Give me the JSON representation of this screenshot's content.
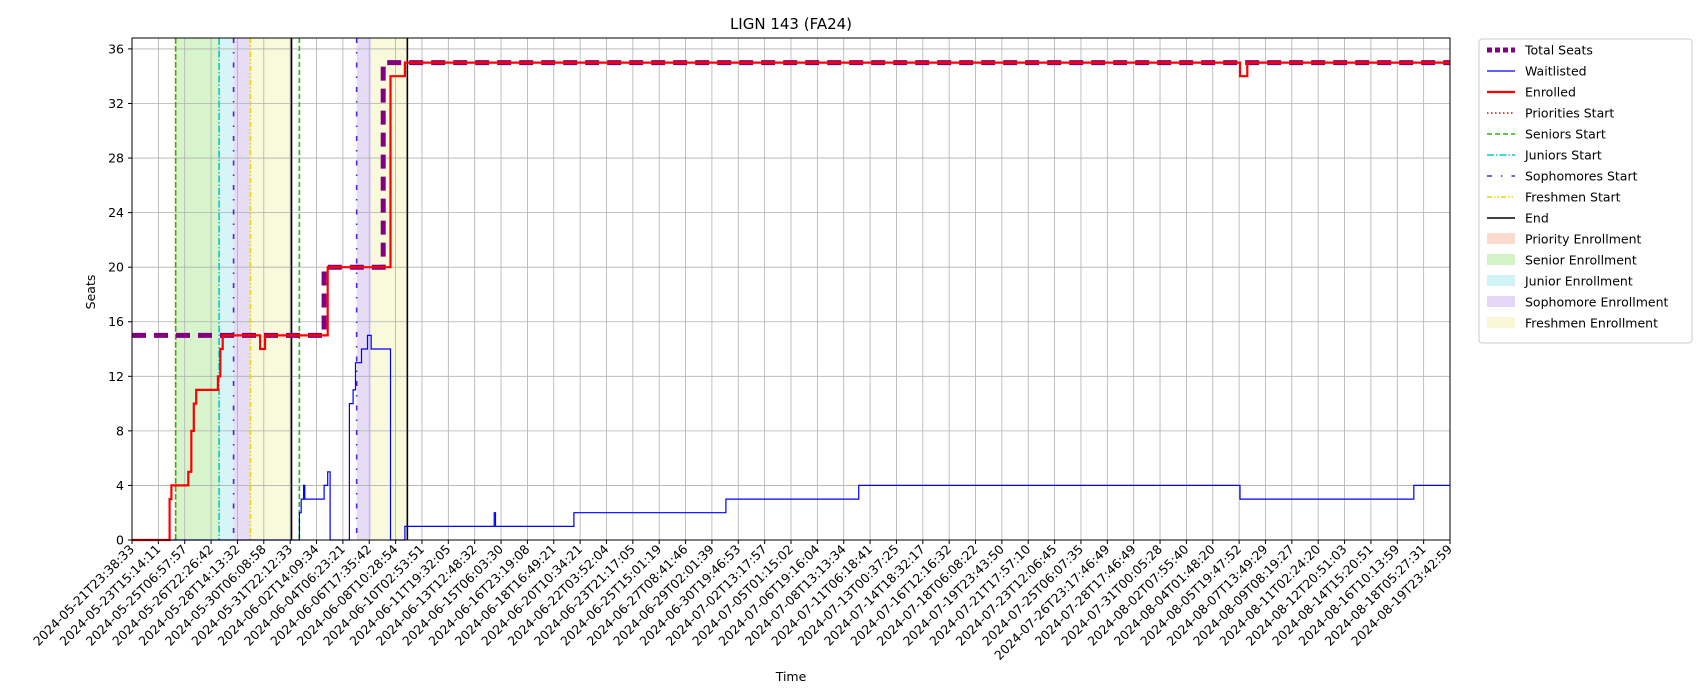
{
  "chart_data": {
    "type": "line",
    "title": "LIGN 143 (FA24)",
    "xlabel": "Time",
    "ylabel": "Seats",
    "ylim": [
      0,
      36.8
    ],
    "xlim": [
      "2024-05-21T23:38:33",
      "2024-08-21T00:00:00"
    ],
    "yticks": [
      0,
      4,
      8,
      12,
      16,
      20,
      24,
      28,
      32,
      36
    ],
    "grid": true,
    "legend_position": "outside-right",
    "xtick_labels": [
      "2024-05-21T23:38:33",
      "2024-05-23T15:14:11",
      "2024-05-25T06:57:57",
      "2024-05-26T22:26:42",
      "2024-05-28T14:13:32",
      "2024-05-30T06:08:58",
      "2024-05-31T22:12:33",
      "2024-06-02T14:09:34",
      "2024-06-04T06:23:21",
      "2024-06-06T17:35:42",
      "2024-06-08T10:28:54",
      "2024-06-10T02:53:51",
      "2024-06-11T19:32:05",
      "2024-06-13T12:48:32",
      "2024-06-15T06:03:30",
      "2024-06-16T23:19:08",
      "2024-06-18T16:49:21",
      "2024-06-20T10:34:21",
      "2024-06-22T03:52:04",
      "2024-06-23T21:17:05",
      "2024-06-25T15:01:19",
      "2024-06-27T08:41:46",
      "2024-06-29T02:01:39",
      "2024-06-30T19:46:53",
      "2024-07-02T13:17:57",
      "2024-07-05T01:15:02",
      "2024-07-06T19:16:04",
      "2024-07-08T13:13:34",
      "2024-07-11T06:18:41",
      "2024-07-13T00:37:25",
      "2024-07-14T18:32:17",
      "2024-07-16T12:16:32",
      "2024-07-18T06:08:22",
      "2024-07-19T23:43:50",
      "2024-07-21T17:57:10",
      "2024-07-23T12:06:45",
      "2024-07-25T06:07:35",
      "2024-07-26T23:17:46:49",
      "2024-07-28T17:46:49",
      "2024-07-31T00:05:28",
      "2024-08-02T07:55:40",
      "2024-08-04T01:48:20",
      "2024-08-05T19:47:52",
      "2024-08-07T13:49:29",
      "2024-08-09T08:19:27",
      "2024-08-11T02:24:20",
      "2024-08-12T20:51:03",
      "2024-08-14T15:20:51",
      "2024-08-16T10:13:59",
      "2024-08-18T05:27:31",
      "2024-08-19T23:42:59"
    ],
    "vertical_markers": [
      {
        "name": "Priorities Start",
        "x": "2024-05-25T00:00:00",
        "color": "#ff0000",
        "dash": "dotted"
      },
      {
        "name": "Seniors Start",
        "x": "2024-05-25T00:00:00",
        "color": "#22bb00",
        "dash": "dashed"
      },
      {
        "name": "Juniors Start",
        "x": "2024-05-28T00:00:00",
        "color": "#00cccc",
        "dash": "dashdot"
      },
      {
        "name": "Sophomores Start",
        "x": "2024-05-29T00:00:00",
        "color": "#5522cc",
        "dash": "loosedash"
      },
      {
        "name": "Freshmen Start",
        "x": "2024-05-30T04:00:00",
        "color": "#e6d800",
        "dash": "dashdotdot"
      },
      {
        "name": "End",
        "x": "2024-06-02T00:00:00",
        "color": "#000000",
        "dash": "solid"
      },
      {
        "name": "Seniors Start",
        "x": "2024-06-02T13:00:00",
        "color": "#22bb00",
        "dash": "dashed"
      },
      {
        "name": "Sophomores Start",
        "x": "2024-06-06T12:00:00",
        "color": "#5522cc",
        "dash": "loosedash"
      },
      {
        "name": "End",
        "x": "2024-06-10T00:00:00",
        "color": "#000000",
        "dash": "solid"
      }
    ],
    "shaded_periods": [
      {
        "name": "Priority Enrollment",
        "x0": "2024-05-25T00:00:00",
        "x1": "2024-05-25T00:00:00",
        "color": "#f4a582"
      },
      {
        "name": "Senior Enrollment",
        "x0": "2024-05-25T00:00:00",
        "x1": "2024-05-28T00:00:00",
        "color": "#90e070"
      },
      {
        "name": "Junior Enrollment",
        "x0": "2024-05-28T00:00:00",
        "x1": "2024-05-29T00:00:00",
        "color": "#8ce0e8"
      },
      {
        "name": "Sophomore Enrollment",
        "x0": "2024-05-29T00:00:00",
        "x1": "2024-05-30T04:00:00",
        "color": "#b89ae6"
      },
      {
        "name": "Freshmen Enrollment",
        "x0": "2024-05-30T04:00:00",
        "x1": "2024-06-02T00:00:00",
        "color": "#eeee99"
      },
      {
        "name": "Senior Enrollment",
        "x0": "2024-06-02T13:00:00",
        "x1": "2024-06-02T13:30:00",
        "color": "#90e070"
      },
      {
        "name": "Sophomore Enrollment",
        "x0": "2024-06-06T12:00:00",
        "x1": "2024-06-07T12:00:00",
        "color": "#b89ae6"
      },
      {
        "name": "Freshmen Enrollment",
        "x0": "2024-06-07T12:00:00",
        "x1": "2024-06-10T00:00:00",
        "color": "#eeee99"
      }
    ],
    "series": [
      {
        "name": "Total Seats",
        "color": "#800080",
        "style": "dashed-thick",
        "points": [
          [
            "2024-05-21T23:38:33",
            15
          ],
          [
            "2024-06-04T06:00:00",
            15
          ],
          [
            "2024-06-04T06:00:00",
            20
          ],
          [
            "2024-06-08T08:00:00",
            20
          ],
          [
            "2024-06-08T08:00:00",
            35
          ],
          [
            "2024-08-21T00:00:00",
            35
          ]
        ]
      },
      {
        "name": "Waitlisted",
        "color": "#0000ff",
        "style": "solid-thin",
        "points": [
          [
            "2024-05-21T23:38:33",
            0
          ],
          [
            "2024-06-02T13:00:00",
            0
          ],
          [
            "2024-06-02T13:00:00",
            2
          ],
          [
            "2024-06-02T16:00:00",
            2
          ],
          [
            "2024-06-02T16:00:00",
            3
          ],
          [
            "2024-06-02T20:00:00",
            3
          ],
          [
            "2024-06-02T20:00:00",
            4
          ],
          [
            "2024-06-02T22:00:00",
            4
          ],
          [
            "2024-06-02T22:00:00",
            3
          ],
          [
            "2024-06-04T06:00:00",
            3
          ],
          [
            "2024-06-04T06:00:00",
            4
          ],
          [
            "2024-06-04T12:00:00",
            4
          ],
          [
            "2024-06-04T12:00:00",
            5
          ],
          [
            "2024-06-04T16:00:00",
            5
          ],
          [
            "2024-06-04T16:00:00",
            0
          ],
          [
            "2024-06-06T00:00:00",
            0
          ],
          [
            "2024-06-06T00:00:00",
            10
          ],
          [
            "2024-06-06T06:00:00",
            10
          ],
          [
            "2024-06-06T06:00:00",
            11
          ],
          [
            "2024-06-06T10:00:00",
            11
          ],
          [
            "2024-06-06T10:00:00",
            13
          ],
          [
            "2024-06-06T20:00:00",
            13
          ],
          [
            "2024-06-06T20:00:00",
            14
          ],
          [
            "2024-06-07T06:00:00",
            14
          ],
          [
            "2024-06-07T06:00:00",
            15
          ],
          [
            "2024-06-07T12:00:00",
            15
          ],
          [
            "2024-06-07T12:00:00",
            14
          ],
          [
            "2024-06-08T20:00:00",
            14
          ],
          [
            "2024-06-08T20:00:00",
            0
          ],
          [
            "2024-06-09T20:00:00",
            0
          ],
          [
            "2024-06-09T20:00:00",
            1
          ],
          [
            "2024-06-16T00:00:00",
            1
          ],
          [
            "2024-06-16T00:00:00",
            2
          ],
          [
            "2024-06-16T02:00:00",
            2
          ],
          [
            "2024-06-16T02:00:00",
            1
          ],
          [
            "2024-06-21T12:00:00",
            1
          ],
          [
            "2024-06-21T12:00:00",
            2
          ],
          [
            "2024-07-02T00:00:00",
            2
          ],
          [
            "2024-07-02T00:00:00",
            3
          ],
          [
            "2024-07-11T04:00:00",
            3
          ],
          [
            "2024-07-11T04:00:00",
            4
          ],
          [
            "2024-08-06T12:00:00",
            4
          ],
          [
            "2024-08-06T12:00:00",
            3
          ],
          [
            "2024-08-18T12:00:00",
            3
          ],
          [
            "2024-08-18T12:00:00",
            4
          ],
          [
            "2024-08-21T00:00:00",
            4
          ]
        ]
      },
      {
        "name": "Enrolled",
        "color": "#ff0000",
        "style": "solid-thick",
        "points": [
          [
            "2024-05-21T23:38:33",
            0
          ],
          [
            "2024-05-24T14:00:00",
            0
          ],
          [
            "2024-05-24T14:00:00",
            3
          ],
          [
            "2024-05-24T17:00:00",
            3
          ],
          [
            "2024-05-24T17:00:00",
            4
          ],
          [
            "2024-05-25T21:00:00",
            4
          ],
          [
            "2024-05-25T21:00:00",
            5
          ],
          [
            "2024-05-26T02:00:00",
            5
          ],
          [
            "2024-05-26T02:00:00",
            8
          ],
          [
            "2024-05-26T06:00:00",
            8
          ],
          [
            "2024-05-26T06:00:00",
            10
          ],
          [
            "2024-05-26T10:00:00",
            10
          ],
          [
            "2024-05-26T10:00:00",
            11
          ],
          [
            "2024-05-27T22:00:00",
            11
          ],
          [
            "2024-05-27T22:00:00",
            12
          ],
          [
            "2024-05-28T02:00:00",
            12
          ],
          [
            "2024-05-28T02:00:00",
            14
          ],
          [
            "2024-05-28T06:00:00",
            14
          ],
          [
            "2024-05-28T06:00:00",
            15
          ],
          [
            "2024-05-30T20:00:00",
            15
          ],
          [
            "2024-05-30T20:00:00",
            14
          ],
          [
            "2024-05-31T04:00:00",
            14
          ],
          [
            "2024-05-31T04:00:00",
            15
          ],
          [
            "2024-06-04T12:00:00",
            15
          ],
          [
            "2024-06-04T12:00:00",
            20
          ],
          [
            "2024-06-08T20:00:00",
            20
          ],
          [
            "2024-06-08T20:00:00",
            34
          ],
          [
            "2024-06-09T20:00:00",
            34
          ],
          [
            "2024-06-09T20:00:00",
            35
          ],
          [
            "2024-08-06T12:00:00",
            35
          ],
          [
            "2024-08-06T12:00:00",
            34
          ],
          [
            "2024-08-07T00:00:00",
            34
          ],
          [
            "2024-08-07T00:00:00",
            35
          ],
          [
            "2024-08-21T00:00:00",
            35
          ]
        ]
      }
    ],
    "legend": [
      {
        "label": "Total Seats",
        "kind": "line",
        "color": "#800080",
        "dash": "5,3",
        "width": 5
      },
      {
        "label": "Waitlisted",
        "kind": "line",
        "color": "#0000ff",
        "dash": "",
        "width": 1.2
      },
      {
        "label": "Enrolled",
        "kind": "line",
        "color": "#ff0000",
        "dash": "",
        "width": 2.2
      },
      {
        "label": "Priorities Start",
        "kind": "line",
        "color": "#ff0000",
        "dash": "1.5,2.5",
        "width": 1.5
      },
      {
        "label": "Seniors Start",
        "kind": "line",
        "color": "#22bb00",
        "dash": "5,3",
        "width": 1.5
      },
      {
        "label": "Juniors Start",
        "kind": "line",
        "color": "#00cccc",
        "dash": "7,2,1.5,2",
        "width": 1.5
      },
      {
        "label": "Sophomores Start",
        "kind": "line",
        "color": "#5522cc",
        "dash": "5,9,1.5,9",
        "width": 1.5
      },
      {
        "label": "Freshmen Start",
        "kind": "line",
        "color": "#e6d800",
        "dash": "5,2,1.5,2,1.5,2",
        "width": 1.5
      },
      {
        "label": "End",
        "kind": "line",
        "color": "#000000",
        "dash": "",
        "width": 1.5
      },
      {
        "label": "Priority Enrollment",
        "kind": "patch",
        "color": "#f4a582"
      },
      {
        "label": "Senior Enrollment",
        "kind": "patch",
        "color": "#90e070"
      },
      {
        "label": "Junior Enrollment",
        "kind": "patch",
        "color": "#8ce0e8"
      },
      {
        "label": "Sophomore Enrollment",
        "kind": "patch",
        "color": "#b89ae6"
      },
      {
        "label": "Freshmen Enrollment",
        "kind": "patch",
        "color": "#eeee99"
      }
    ]
  }
}
